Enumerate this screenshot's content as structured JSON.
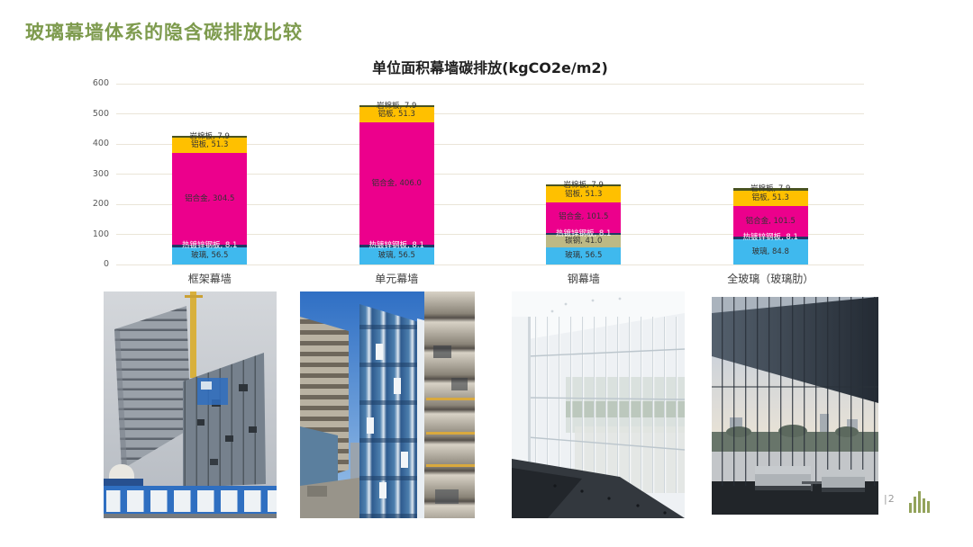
{
  "slide": {
    "title": "玻璃幕墙体系的隐含碳排放比较",
    "title_color": "#7E9B4E",
    "page_number": "|2"
  },
  "chart_data": {
    "type": "bar",
    "stacked": true,
    "title": "单位面积幕墙碳排放(kgCO2e/m2)",
    "categories": [
      "框架幕墙",
      "单元幕墙",
      "钢幕墙",
      "全玻璃（玻璃肋）"
    ],
    "series": [
      {
        "name": "玻璃",
        "color": "#3FB9EE",
        "label_color": "#333333",
        "values": [
          56.5,
          56.5,
          56.5,
          84.8
        ]
      },
      {
        "name": "碳钢",
        "color": "#BDB985",
        "label_color": "#333333",
        "values": [
          null,
          null,
          41.0,
          null
        ]
      },
      {
        "name": "热镀锌钢板",
        "color": "#203864",
        "label_color": "#FFFFFF",
        "values": [
          8.1,
          8.1,
          8.1,
          8.1
        ]
      },
      {
        "name": "铝合金",
        "color": "#EC008C",
        "label_color": "#333333",
        "values": [
          304.5,
          406.0,
          101.5,
          101.5
        ]
      },
      {
        "name": "铝板",
        "color": "#FFC000",
        "label_color": "#333333",
        "values": [
          51.3,
          51.3,
          51.3,
          51.3
        ]
      },
      {
        "name": "岩棉板",
        "color": "#4A5320",
        "label_color": "#333333",
        "values": [
          7.9,
          7.9,
          7.9,
          7.9
        ]
      }
    ],
    "totals": [
      428.3,
      529.8,
      266.3,
      253.6
    ],
    "ylim": [
      0,
      600
    ],
    "yticks": [
      0,
      100,
      200,
      300,
      400,
      500,
      600
    ],
    "grid": true,
    "legend": "none",
    "data_labels": "name, value"
  },
  "photos": [
    {
      "id": "frame-curtain-wall-construction-photo"
    },
    {
      "id": "unit-curtain-wall-installation-photo"
    },
    {
      "id": "steel-curtain-wall-interior-photo"
    },
    {
      "id": "glass-fin-curtain-wall-lobby-photo"
    }
  ],
  "footer": {
    "logo": "bar-chart-logo",
    "logo_color": "#93A35B"
  }
}
